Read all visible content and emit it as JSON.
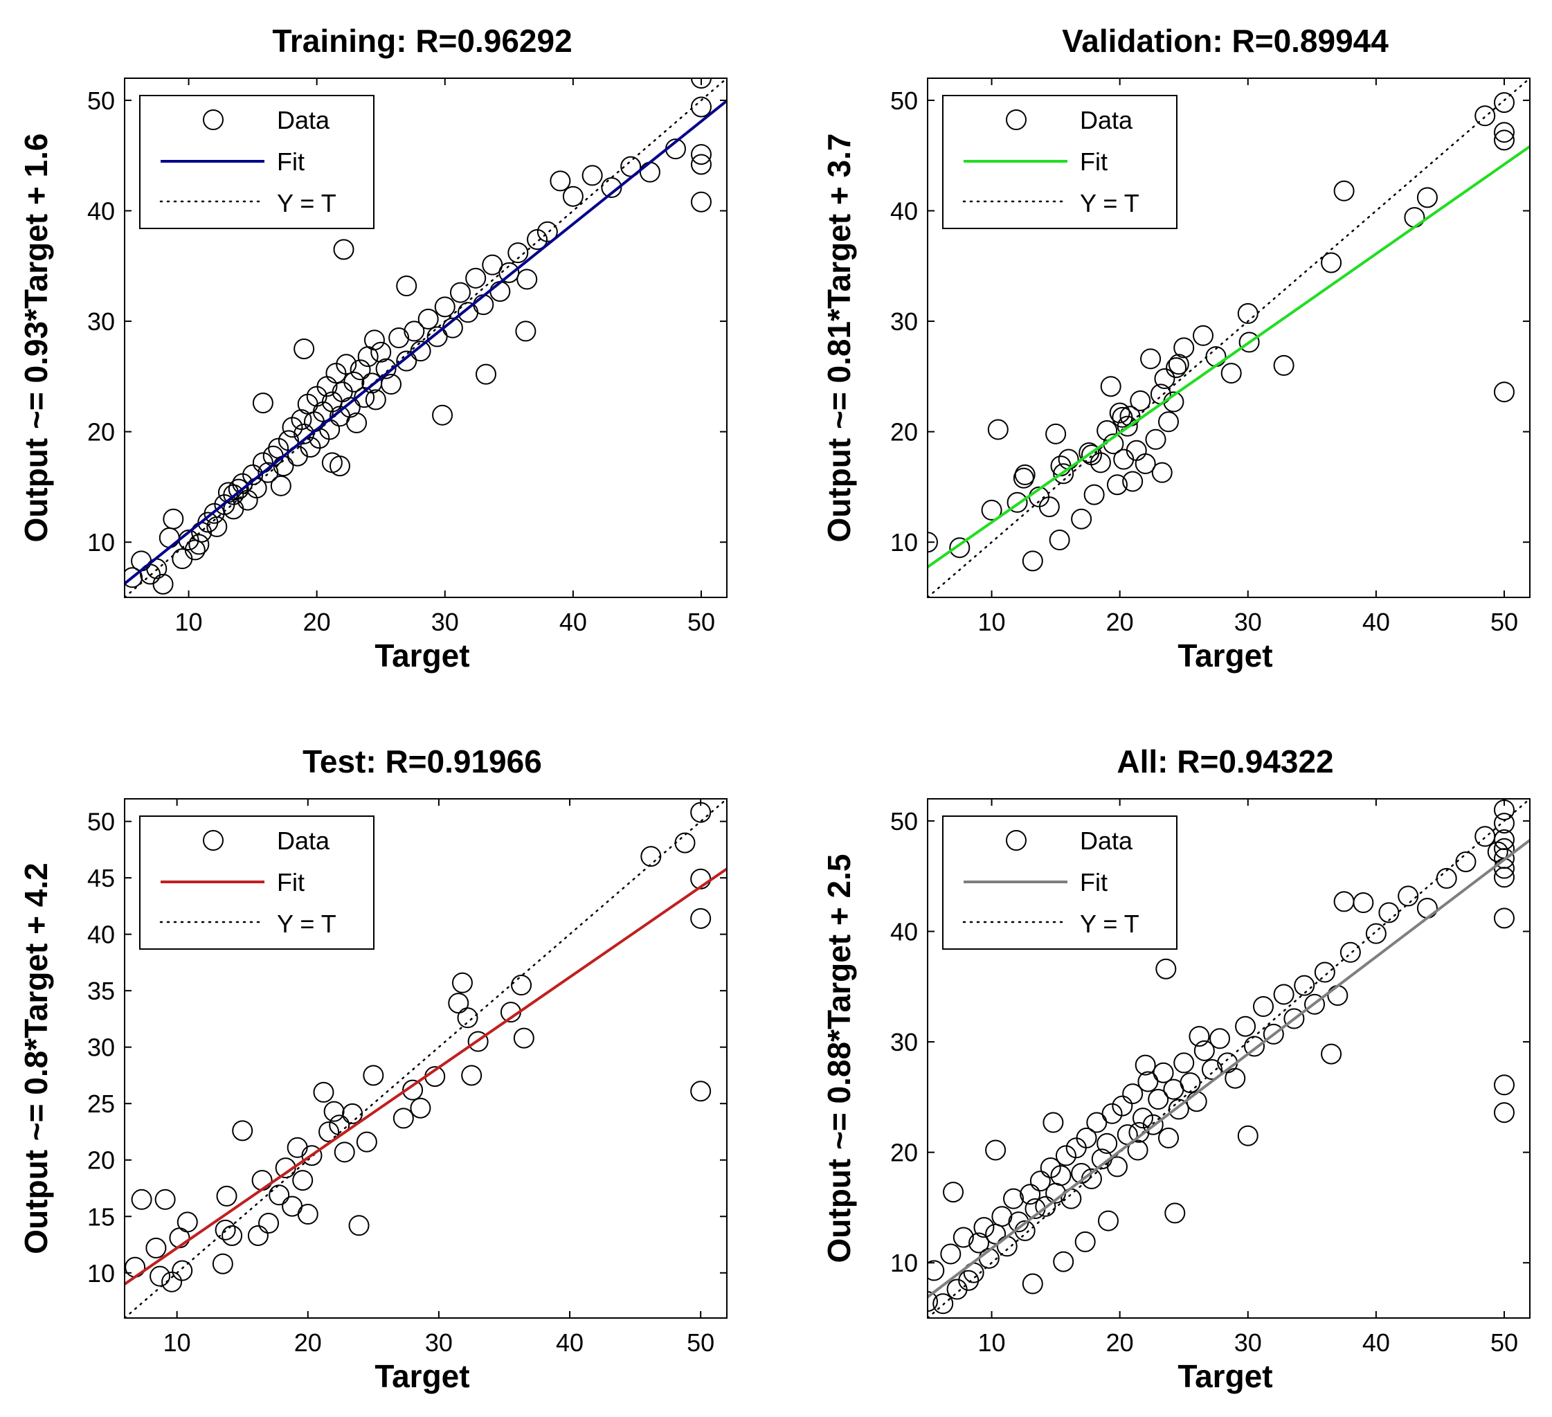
{
  "chart_data": [
    {
      "type": "scatter",
      "title": "Training: R=0.96292",
      "xlabel": "Target",
      "ylabel": "Output ~= 0.93*Target + 1.6",
      "xlim": [
        5,
        52
      ],
      "ylim": [
        5,
        52
      ],
      "xticks": [
        10,
        20,
        30,
        40,
        50
      ],
      "yticks": [
        10,
        20,
        30,
        40,
        50
      ],
      "legend": [
        "Data",
        "Fit",
        "Y = T"
      ],
      "legend_position": "top-left",
      "fit": {
        "slope": 0.93,
        "intercept": 1.6,
        "color": "#00008b"
      },
      "series": [
        {
          "name": "Data",
          "x": [
            5.6,
            6.3,
            7,
            7.5,
            8,
            8.8,
            9.5,
            10,
            10.5,
            11,
            11.5,
            12,
            12.2,
            12.8,
            13.1,
            13.5,
            13.9,
            14.2,
            14.6,
            15,
            15.3,
            15.8,
            16.2,
            16.6,
            17,
            17.4,
            17.8,
            18.1,
            18.5,
            18.8,
            19,
            19.3,
            19.5,
            19.8,
            20,
            20.2,
            20.5,
            20.8,
            21,
            21.2,
            21.5,
            21.8,
            22,
            22.3,
            22.6,
            22.9,
            23.1,
            23.4,
            23.7,
            24,
            24.3,
            24.6,
            25,
            25.4,
            25.8,
            26.4,
            27,
            27.6,
            28.1,
            28.7,
            29.4,
            30,
            30.6,
            31.2,
            31.8,
            32.4,
            33,
            33.7,
            34.3,
            35,
            35.7,
            36.4,
            37.2,
            38,
            39,
            40,
            41.5,
            43,
            44.5,
            46,
            48,
            50,
            50,
            50,
            50,
            50,
            13.5,
            15.8,
            19,
            21.2,
            24.5,
            17.2,
            22.1,
            27,
            29.8,
            33.2,
            36.3,
            21.8,
            10.8,
            8.5
          ],
          "y": [
            6.8,
            8.3,
            7.1,
            7.6,
            6.2,
            12.1,
            8.5,
            10.2,
            9.3,
            10.9,
            11.8,
            12.6,
            11.4,
            13.4,
            14.5,
            13,
            14.8,
            15.3,
            13.8,
            16.1,
            14.9,
            17.2,
            16.3,
            17.8,
            18.5,
            16.9,
            19.2,
            20.4,
            17.8,
            21.1,
            19.8,
            22.5,
            18.6,
            20.9,
            23.2,
            19.4,
            21.8,
            24.1,
            20.2,
            22.7,
            25.3,
            21.4,
            23.6,
            26.1,
            22.2,
            24.5,
            20.8,
            25.6,
            23.1,
            26.8,
            24.4,
            22.9,
            27.2,
            25.7,
            24.3,
            28.5,
            26.4,
            29.1,
            27.3,
            30.2,
            28.6,
            31.3,
            29.4,
            32.6,
            30.8,
            33.9,
            31.5,
            35.1,
            32.7,
            34.4,
            36.2,
            33.8,
            37.4,
            38.1,
            42.7,
            41.3,
            43.2,
            42.1,
            44,
            43.5,
            45.6,
            52,
            49.4,
            45.1,
            44.2,
            40.8,
            14.3,
            22.6,
            27.5,
            17.2,
            28.3,
            15.1,
            36.5,
            33.2,
            21.5,
            25.2,
            29.1,
            16.9,
            9.8,
            10.4
          ]
        }
      ]
    },
    {
      "type": "scatter",
      "title": "Validation: R=0.89944",
      "xlabel": "Target",
      "ylabel": "Output ~= 0.81*Target + 3.7",
      "xlim": [
        5,
        52
      ],
      "ylim": [
        5,
        52
      ],
      "xticks": [
        10,
        20,
        30,
        40,
        50
      ],
      "yticks": [
        10,
        20,
        30,
        40,
        50
      ],
      "legend": [
        "Data",
        "Fit",
        "Y = T"
      ],
      "legend_position": "top-left",
      "fit": {
        "slope": 0.81,
        "intercept": 3.7,
        "color": "#22dd22"
      },
      "series": [
        {
          "name": "Data",
          "x": [
            5,
            7.5,
            10,
            10.5,
            12,
            12.5,
            13.2,
            13.7,
            14.5,
            15,
            15.3,
            15.6,
            16,
            17,
            17.6,
            18,
            18.5,
            19,
            19.3,
            19.8,
            20,
            20.3,
            20.6,
            21,
            21.3,
            21.6,
            22,
            22.4,
            22.8,
            23.2,
            23.5,
            23.8,
            24.2,
            24.6,
            25,
            26.5,
            27.5,
            28.7,
            30,
            32.8,
            36.5,
            37.5,
            43,
            44,
            48.5,
            50,
            50,
            50,
            50,
            12.6,
            15.4,
            17.8,
            20.2,
            23.3,
            24.4,
            30.1,
            20.8,
            19.5
          ],
          "y": [
            10,
            9.5,
            12.9,
            20.2,
            13.6,
            15.8,
            8.3,
            14.1,
            13.2,
            19.8,
            10.2,
            16.2,
            17.5,
            12.1,
            18.1,
            14.3,
            17.2,
            20.1,
            24.1,
            15.2,
            21.7,
            17.5,
            20.5,
            15.5,
            18.3,
            22.8,
            17.1,
            26.6,
            19.3,
            23.4,
            24.8,
            20.9,
            22.7,
            26.1,
            27.6,
            28.7,
            26.8,
            25.3,
            30.7,
            26,
            35.3,
            41.8,
            39.4,
            41.2,
            48.6,
            49.8,
            47.1,
            46.4,
            23.6,
            16.1,
            16.9,
            17.9,
            21.3,
            16.3,
            25.8,
            28.1,
            21.4,
            18.9
          ]
        }
      ]
    },
    {
      "type": "scatter",
      "title": "Test: R=0.91966",
      "xlabel": "Target",
      "ylabel": "Output ~= 0.8*Target + 4.2",
      "xlim": [
        6,
        52
      ],
      "ylim": [
        6,
        52
      ],
      "xticks": [
        10,
        20,
        30,
        40,
        50
      ],
      "yticks": [
        10,
        15,
        20,
        25,
        30,
        35,
        40,
        45,
        50
      ],
      "legend": [
        "Data",
        "Fit",
        "Y = T"
      ],
      "legend_position": "top-left",
      "fit": {
        "slope": 0.8,
        "intercept": 4.2,
        "color": "#c02020"
      },
      "series": [
        {
          "name": "Data",
          "x": [
            6.8,
            7.3,
            8.4,
            8.7,
            9.1,
            9.6,
            10.2,
            10.4,
            10.8,
            13.5,
            13.8,
            14.2,
            15,
            16.2,
            16.5,
            17,
            17.8,
            18.3,
            18.8,
            19.2,
            19.6,
            20,
            20.3,
            21.2,
            21.6,
            22,
            22.4,
            22.8,
            23.4,
            23.9,
            24.5,
            25,
            27.3,
            28,
            28.6,
            29.7,
            31.5,
            31.8,
            32.2,
            32.5,
            33,
            35.5,
            36.3,
            36.5,
            46.2,
            48.8,
            50,
            50,
            50,
            50,
            13.7
          ],
          "y": [
            10.5,
            16.5,
            12.2,
            9.7,
            16.5,
            9.2,
            13.1,
            10.2,
            14.5,
            10.8,
            16.8,
            13.3,
            22.6,
            13.3,
            18.2,
            14.4,
            16.9,
            19.3,
            15.9,
            21.1,
            18.2,
            15.2,
            20.4,
            26,
            22.5,
            24.3,
            23.1,
            20.7,
            24.1,
            14.2,
            21.6,
            27.5,
            23.7,
            26.2,
            24.6,
            27.4,
            33.9,
            35.7,
            32.6,
            27.5,
            30.5,
            33.1,
            35.5,
            30.8,
            46.9,
            48.1,
            50.8,
            44.9,
            41.4,
            26.1,
            13.8
          ]
        }
      ]
    },
    {
      "type": "scatter",
      "title": "All: R=0.94322",
      "xlabel": "Target",
      "ylabel": "Output ~= 0.88*Target + 2.5",
      "xlim": [
        5,
        52
      ],
      "ylim": [
        5,
        52
      ],
      "xticks": [
        10,
        20,
        30,
        40,
        50
      ],
      "yticks": [
        10,
        20,
        30,
        40,
        50
      ],
      "legend": [
        "Data",
        "Fit",
        "Y = T"
      ],
      "legend_position": "top-left",
      "fit": {
        "slope": 0.88,
        "intercept": 2.5,
        "color": "#7f7f7f"
      },
      "series": [
        {
          "name": "Data",
          "x": [
            5,
            5.5,
            6.2,
            6.8,
            7.3,
            7.8,
            8.2,
            8.6,
            9,
            9.4,
            9.8,
            10.3,
            10.8,
            11.2,
            11.7,
            12.1,
            12.6,
            13,
            13.4,
            13.8,
            14.2,
            14.6,
            15,
            15.4,
            15.8,
            16.2,
            16.6,
            17,
            17.4,
            17.8,
            18.2,
            18.6,
            19,
            19.4,
            19.8,
            20.2,
            20.6,
            21,
            21.4,
            21.8,
            22.2,
            22.6,
            23,
            23.4,
            23.8,
            24.2,
            24.6,
            25,
            25.5,
            26,
            26.6,
            27.2,
            27.8,
            28.4,
            29,
            29.8,
            30.5,
            31.2,
            32,
            32.8,
            33.6,
            34.4,
            35.2,
            36,
            37,
            38,
            39,
            40,
            41,
            42.5,
            44,
            45.5,
            47,
            48.5,
            49.5,
            50,
            50,
            50,
            50,
            50,
            50,
            50,
            50,
            50,
            50,
            7,
            10.3,
            14.8,
            15.6,
            22,
            23.6,
            37.5,
            36.5,
            30,
            26.2,
            24.3,
            21.5,
            19.1,
            17.3,
            13.2
          ],
          "y": [
            6.5,
            9.3,
            6.3,
            10.8,
            7.6,
            12.3,
            8.4,
            9.1,
            11.8,
            13.2,
            10.4,
            12.6,
            14.2,
            11.5,
            15.8,
            13.7,
            12.9,
            16.2,
            14.9,
            17.4,
            15.1,
            18.6,
            16.3,
            17.9,
            19.7,
            15.8,
            20.4,
            18.1,
            21.3,
            17.6,
            22.7,
            19.4,
            20.8,
            23.5,
            18.7,
            24.2,
            21.6,
            25.3,
            20.2,
            23.1,
            26.4,
            22.5,
            24.8,
            27.2,
            21.3,
            25.7,
            23.9,
            28.1,
            26.3,
            24.6,
            29.2,
            27.5,
            30.3,
            28.1,
            26.7,
            31.4,
            29.6,
            33.2,
            30.7,
            34.3,
            32.1,
            35.1,
            33.4,
            36.3,
            34.2,
            38.1,
            42.6,
            39.8,
            41.7,
            43.2,
            42.1,
            44.8,
            46.3,
            48.6,
            47.2,
            51,
            49.8,
            48.3,
            47.5,
            46.6,
            45.7,
            44.9,
            41.2,
            26.1,
            23.6,
            16.4,
            20.2,
            22.7,
            10.1,
            27.9,
            36.6,
            42.7,
            28.9,
            21.5,
            30.5,
            14.5,
            21.8,
            13.8,
            11.9,
            8.1
          ]
        }
      ]
    }
  ]
}
